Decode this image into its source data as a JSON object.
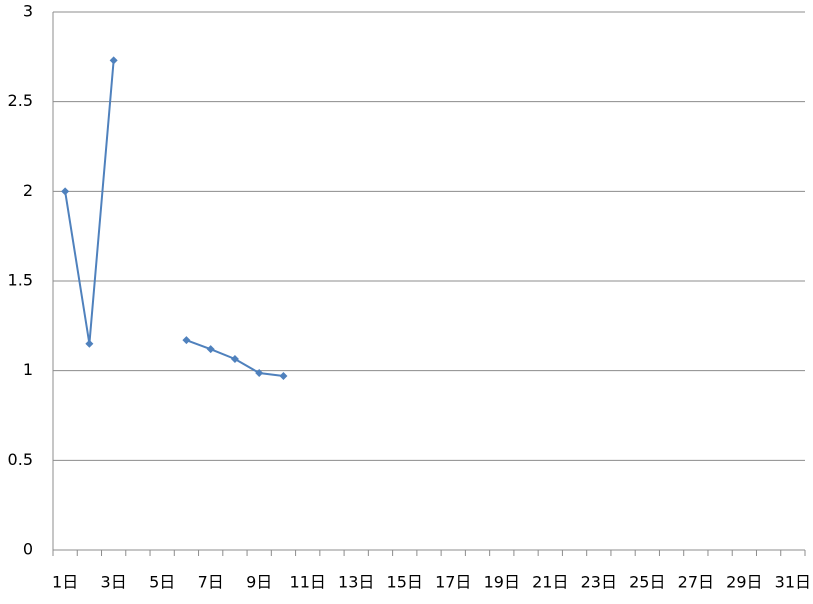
{
  "chart_data": {
    "type": "line",
    "categories": [
      "1日",
      null,
      "3日",
      null,
      "5日",
      null,
      "7日",
      null,
      "9日",
      null,
      "11日",
      null,
      "13日",
      null,
      "15日",
      null,
      "17日",
      null,
      "19日",
      null,
      "21日",
      null,
      "23日",
      null,
      "25日",
      null,
      "27日",
      null,
      "29日",
      null,
      "31日"
    ],
    "series": [
      {
        "color": "#4f81bd",
        "values": [
          2.0,
          1.15,
          2.73,
          null,
          null,
          1.17,
          1.12,
          1.065,
          0.987,
          0.97,
          null,
          null,
          null,
          null,
          null,
          null,
          null,
          null,
          null,
          null,
          null,
          null,
          null,
          null,
          null,
          null,
          null,
          null,
          null,
          null,
          null
        ]
      }
    ],
    "ylim": [
      0,
      3
    ],
    "yticks": [
      0,
      0.5,
      1,
      1.5,
      2,
      2.5,
      3
    ],
    "grid": true
  }
}
